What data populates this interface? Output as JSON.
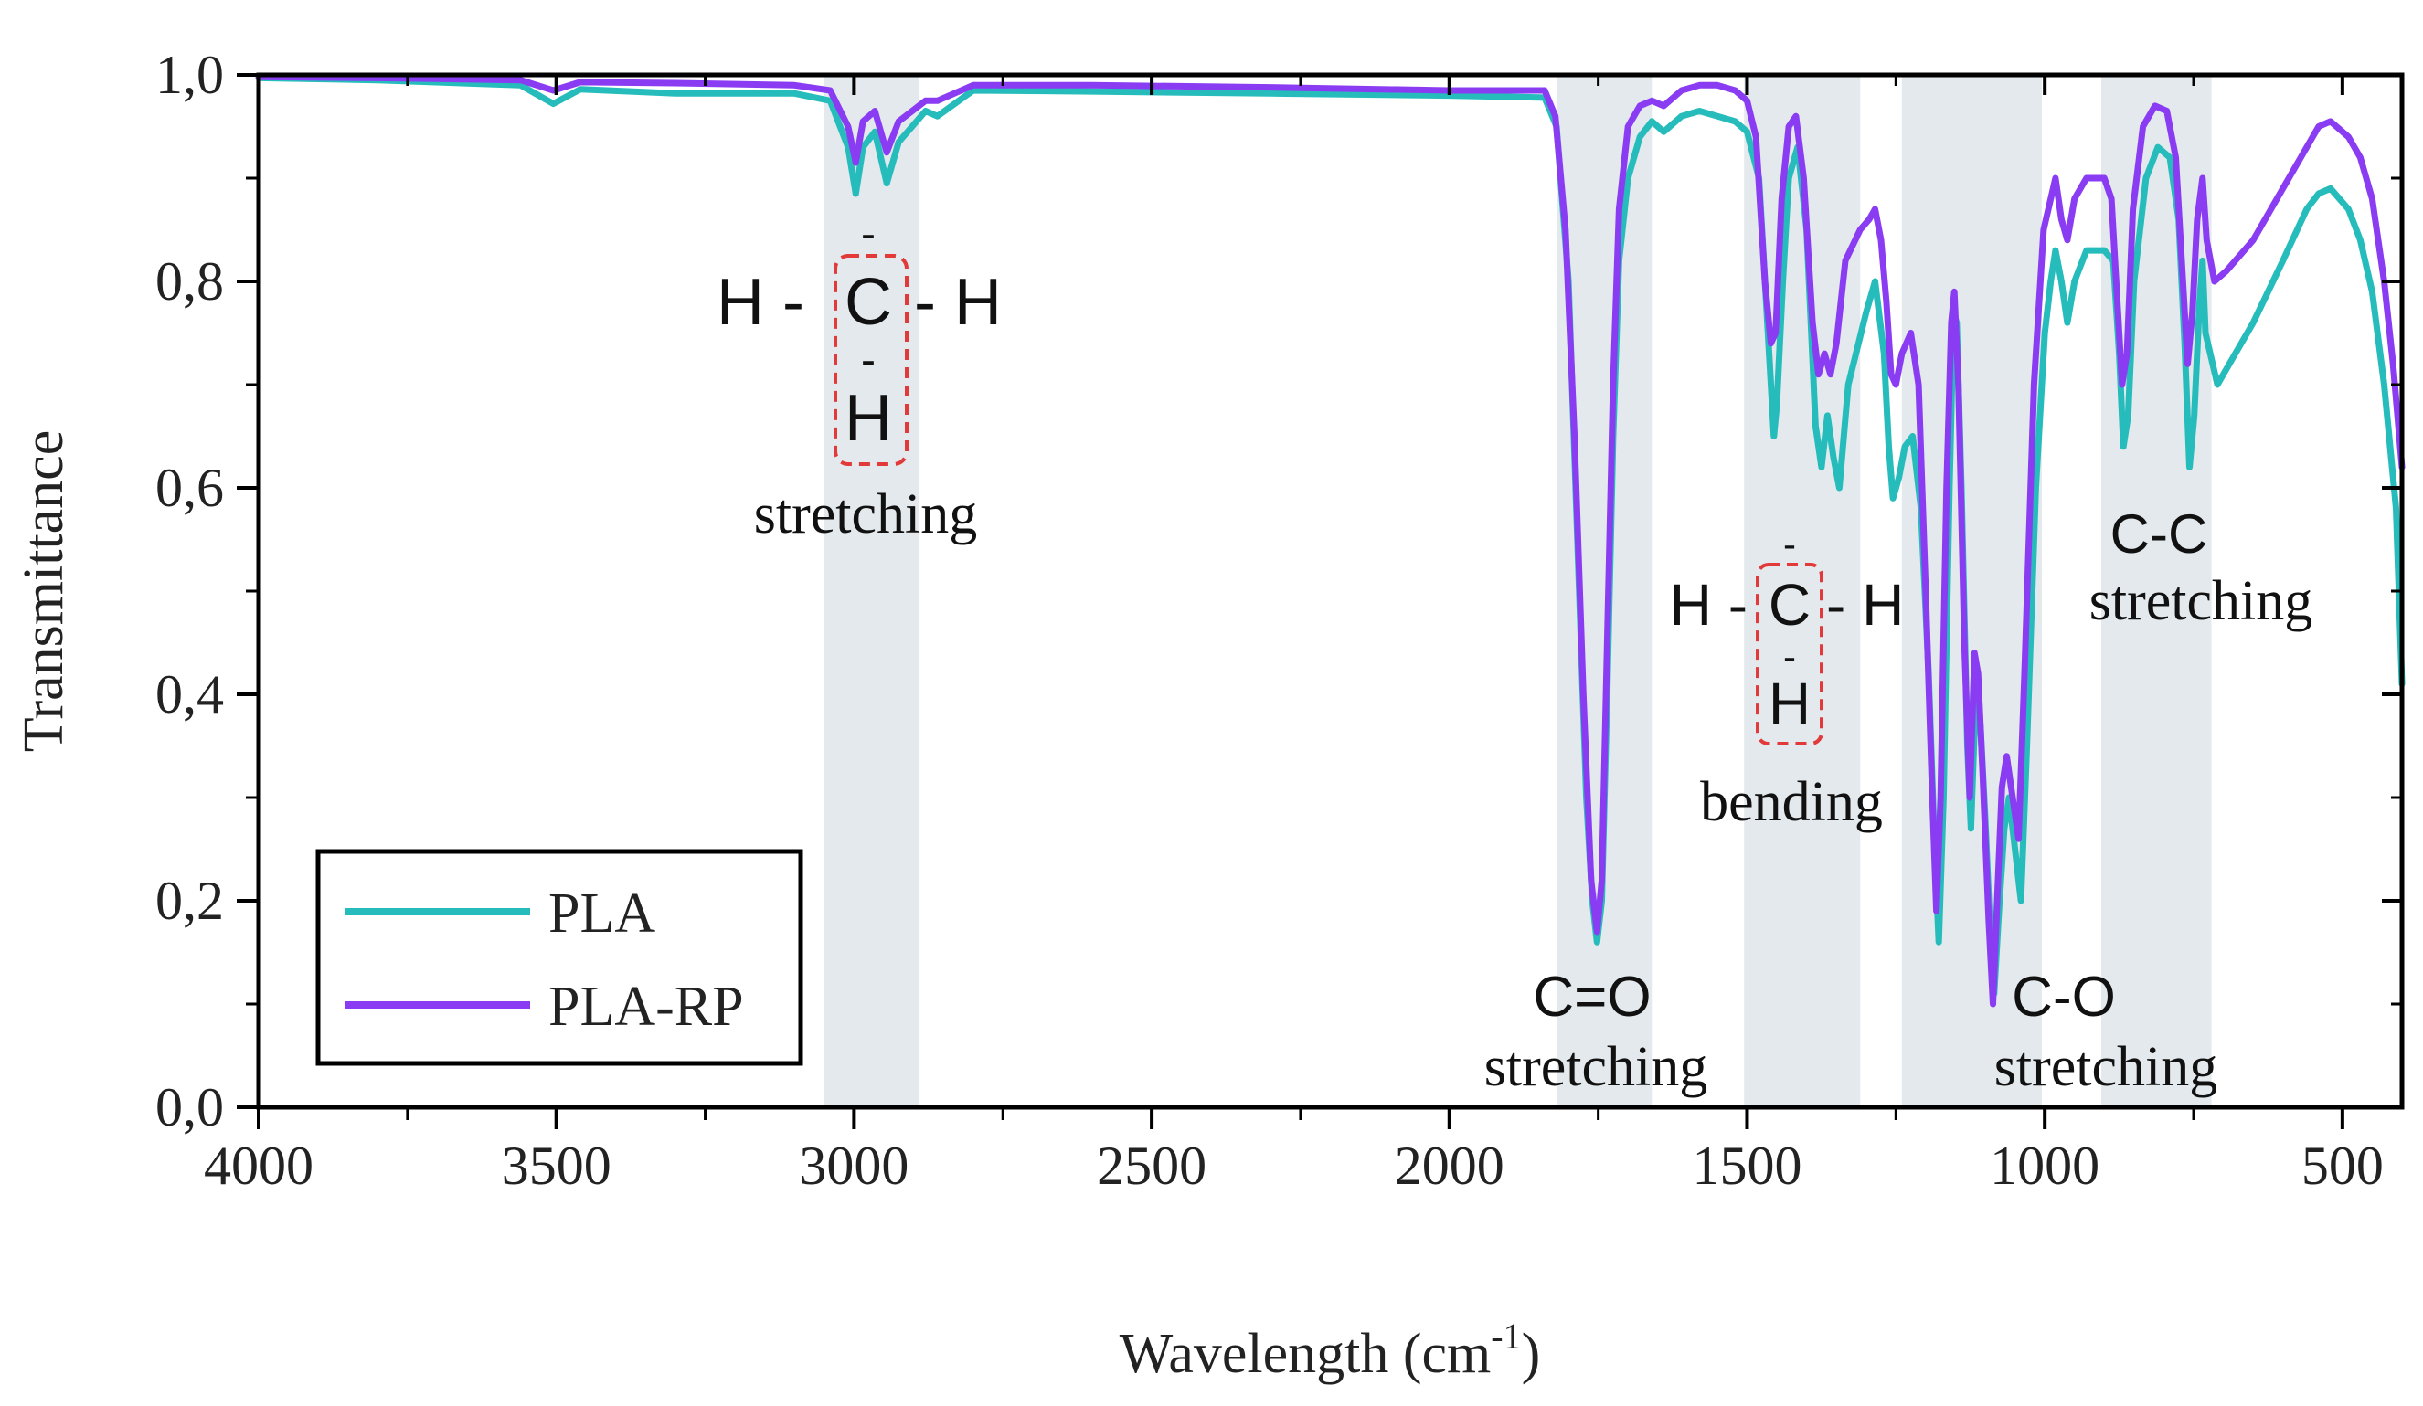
{
  "chart_data": {
    "type": "line",
    "xlabel": "Wavelength (cm",
    "xlabel_sup": "-1",
    "xlabel_close": ")",
    "ylabel": "Transmittance",
    "xlim": [
      4000,
      400
    ],
    "ylim": [
      0.0,
      1.0
    ],
    "x_ticks": [
      {
        "value": 4000,
        "label": "4000"
      },
      {
        "value": 3500,
        "label": "3500"
      },
      {
        "value": 3000,
        "label": "3000"
      },
      {
        "value": 2500,
        "label": "2500"
      },
      {
        "value": 2000,
        "label": "2000"
      },
      {
        "value": 1500,
        "label": "1500"
      },
      {
        "value": 1000,
        "label": "1000"
      },
      {
        "value": 500,
        "label": "500"
      }
    ],
    "y_ticks": [
      {
        "value": 0.0,
        "label": "0,0"
      },
      {
        "value": 0.2,
        "label": "0,2"
      },
      {
        "value": 0.4,
        "label": "0,4"
      },
      {
        "value": 0.6,
        "label": "0,6"
      },
      {
        "value": 0.8,
        "label": "0,8"
      },
      {
        "value": 1.0,
        "label": "1,0"
      }
    ],
    "bands": [
      {
        "from": 3050,
        "to": 2890
      },
      {
        "from": 1820,
        "to": 1660
      },
      {
        "from": 1505,
        "to": 1310
      },
      {
        "from": 1240,
        "to": 1005
      },
      {
        "from": 905,
        "to": 720
      }
    ],
    "series": [
      {
        "name": "PLA",
        "color": "#26bcbc",
        "points": [
          [
            4000,
            0.997
          ],
          [
            3800,
            0.995
          ],
          [
            3560,
            0.99
          ],
          [
            3505,
            0.972
          ],
          [
            3460,
            0.986
          ],
          [
            3300,
            0.982
          ],
          [
            3100,
            0.982
          ],
          [
            3040,
            0.975
          ],
          [
            3010,
            0.93
          ],
          [
            2997,
            0.885
          ],
          [
            2985,
            0.93
          ],
          [
            2965,
            0.945
          ],
          [
            2945,
            0.895
          ],
          [
            2925,
            0.935
          ],
          [
            2880,
            0.965
          ],
          [
            2860,
            0.96
          ],
          [
            2800,
            0.985
          ],
          [
            2600,
            0.984
          ],
          [
            2300,
            0.982
          ],
          [
            2000,
            0.98
          ],
          [
            1840,
            0.978
          ],
          [
            1820,
            0.95
          ],
          [
            1800,
            0.8
          ],
          [
            1785,
            0.55
          ],
          [
            1770,
            0.3
          ],
          [
            1760,
            0.2
          ],
          [
            1752,
            0.16
          ],
          [
            1744,
            0.2
          ],
          [
            1735,
            0.4
          ],
          [
            1725,
            0.65
          ],
          [
            1715,
            0.82
          ],
          [
            1700,
            0.9
          ],
          [
            1680,
            0.94
          ],
          [
            1660,
            0.955
          ],
          [
            1640,
            0.945
          ],
          [
            1610,
            0.96
          ],
          [
            1580,
            0.965
          ],
          [
            1550,
            0.96
          ],
          [
            1520,
            0.955
          ],
          [
            1500,
            0.945
          ],
          [
            1480,
            0.9
          ],
          [
            1465,
            0.75
          ],
          [
            1455,
            0.65
          ],
          [
            1450,
            0.68
          ],
          [
            1440,
            0.8
          ],
          [
            1430,
            0.9
          ],
          [
            1415,
            0.93
          ],
          [
            1400,
            0.85
          ],
          [
            1385,
            0.66
          ],
          [
            1375,
            0.62
          ],
          [
            1365,
            0.67
          ],
          [
            1355,
            0.63
          ],
          [
            1345,
            0.6
          ],
          [
            1330,
            0.7
          ],
          [
            1300,
            0.77
          ],
          [
            1285,
            0.8
          ],
          [
            1270,
            0.73
          ],
          [
            1262,
            0.64
          ],
          [
            1255,
            0.59
          ],
          [
            1245,
            0.61
          ],
          [
            1235,
            0.64
          ],
          [
            1222,
            0.65
          ],
          [
            1208,
            0.58
          ],
          [
            1195,
            0.42
          ],
          [
            1185,
            0.25
          ],
          [
            1178,
            0.16
          ],
          [
            1170,
            0.3
          ],
          [
            1160,
            0.6
          ],
          [
            1153,
            0.77
          ],
          [
            1148,
            0.76
          ],
          [
            1140,
            0.6
          ],
          [
            1130,
            0.35
          ],
          [
            1124,
            0.27
          ],
          [
            1116,
            0.4
          ],
          [
            1108,
            0.37
          ],
          [
            1100,
            0.28
          ],
          [
            1090,
            0.15
          ],
          [
            1085,
            0.11
          ],
          [
            1077,
            0.19
          ],
          [
            1068,
            0.27
          ],
          [
            1060,
            0.3
          ],
          [
            1050,
            0.25
          ],
          [
            1040,
            0.2
          ],
          [
            1030,
            0.35
          ],
          [
            1015,
            0.6
          ],
          [
            1000,
            0.75
          ],
          [
            990,
            0.8
          ],
          [
            982,
            0.83
          ],
          [
            972,
            0.8
          ],
          [
            962,
            0.76
          ],
          [
            950,
            0.8
          ],
          [
            930,
            0.83
          ],
          [
            900,
            0.83
          ],
          [
            885,
            0.82
          ],
          [
            875,
            0.73
          ],
          [
            868,
            0.64
          ],
          [
            860,
            0.67
          ],
          [
            850,
            0.8
          ],
          [
            830,
            0.9
          ],
          [
            810,
            0.93
          ],
          [
            790,
            0.92
          ],
          [
            775,
            0.86
          ],
          [
            765,
            0.74
          ],
          [
            757,
            0.62
          ],
          [
            749,
            0.67
          ],
          [
            740,
            0.78
          ],
          [
            735,
            0.82
          ],
          [
            730,
            0.75
          ],
          [
            710,
            0.7
          ],
          [
            690,
            0.72
          ],
          [
            650,
            0.76
          ],
          [
            600,
            0.82
          ],
          [
            560,
            0.87
          ],
          [
            540,
            0.885
          ],
          [
            520,
            0.89
          ],
          [
            490,
            0.87
          ],
          [
            470,
            0.84
          ],
          [
            450,
            0.79
          ],
          [
            430,
            0.7
          ],
          [
            410,
            0.58
          ],
          [
            400,
            0.41
          ]
        ]
      },
      {
        "name": "PLA-RP",
        "color": "#8a3cf2",
        "points": [
          [
            4000,
            0.998
          ],
          [
            3800,
            0.997
          ],
          [
            3560,
            0.995
          ],
          [
            3505,
            0.985
          ],
          [
            3460,
            0.993
          ],
          [
            3300,
            0.992
          ],
          [
            3100,
            0.99
          ],
          [
            3040,
            0.985
          ],
          [
            3010,
            0.95
          ],
          [
            2997,
            0.915
          ],
          [
            2985,
            0.955
          ],
          [
            2965,
            0.965
          ],
          [
            2945,
            0.925
          ],
          [
            2925,
            0.955
          ],
          [
            2880,
            0.975
          ],
          [
            2860,
            0.975
          ],
          [
            2800,
            0.99
          ],
          [
            2600,
            0.99
          ],
          [
            2300,
            0.988
          ],
          [
            2000,
            0.985
          ],
          [
            1840,
            0.985
          ],
          [
            1822,
            0.96
          ],
          [
            1805,
            0.85
          ],
          [
            1790,
            0.65
          ],
          [
            1775,
            0.4
          ],
          [
            1762,
            0.22
          ],
          [
            1752,
            0.17
          ],
          [
            1744,
            0.22
          ],
          [
            1735,
            0.45
          ],
          [
            1725,
            0.7
          ],
          [
            1715,
            0.87
          ],
          [
            1700,
            0.95
          ],
          [
            1680,
            0.97
          ],
          [
            1660,
            0.975
          ],
          [
            1640,
            0.97
          ],
          [
            1610,
            0.985
          ],
          [
            1580,
            0.99
          ],
          [
            1550,
            0.99
          ],
          [
            1520,
            0.985
          ],
          [
            1500,
            0.975
          ],
          [
            1485,
            0.94
          ],
          [
            1470,
            0.8
          ],
          [
            1460,
            0.74
          ],
          [
            1452,
            0.75
          ],
          [
            1442,
            0.88
          ],
          [
            1430,
            0.95
          ],
          [
            1418,
            0.96
          ],
          [
            1405,
            0.9
          ],
          [
            1390,
            0.76
          ],
          [
            1380,
            0.71
          ],
          [
            1370,
            0.73
          ],
          [
            1360,
            0.71
          ],
          [
            1350,
            0.74
          ],
          [
            1335,
            0.82
          ],
          [
            1310,
            0.85
          ],
          [
            1295,
            0.86
          ],
          [
            1285,
            0.87
          ],
          [
            1275,
            0.84
          ],
          [
            1266,
            0.78
          ],
          [
            1258,
            0.71
          ],
          [
            1250,
            0.7
          ],
          [
            1240,
            0.73
          ],
          [
            1225,
            0.75
          ],
          [
            1212,
            0.7
          ],
          [
            1200,
            0.5
          ],
          [
            1190,
            0.32
          ],
          [
            1182,
            0.19
          ],
          [
            1175,
            0.3
          ],
          [
            1165,
            0.6
          ],
          [
            1157,
            0.76
          ],
          [
            1152,
            0.79
          ],
          [
            1145,
            0.7
          ],
          [
            1135,
            0.45
          ],
          [
            1126,
            0.3
          ],
          [
            1118,
            0.44
          ],
          [
            1112,
            0.42
          ],
          [
            1104,
            0.32
          ],
          [
            1094,
            0.18
          ],
          [
            1087,
            0.1
          ],
          [
            1080,
            0.2
          ],
          [
            1072,
            0.31
          ],
          [
            1064,
            0.34
          ],
          [
            1054,
            0.3
          ],
          [
            1044,
            0.26
          ],
          [
            1034,
            0.42
          ],
          [
            1018,
            0.7
          ],
          [
            1002,
            0.85
          ],
          [
            990,
            0.88
          ],
          [
            982,
            0.9
          ],
          [
            972,
            0.86
          ],
          [
            962,
            0.84
          ],
          [
            950,
            0.88
          ],
          [
            930,
            0.9
          ],
          [
            900,
            0.9
          ],
          [
            888,
            0.88
          ],
          [
            878,
            0.78
          ],
          [
            870,
            0.7
          ],
          [
            862,
            0.73
          ],
          [
            852,
            0.87
          ],
          [
            835,
            0.95
          ],
          [
            815,
            0.97
          ],
          [
            795,
            0.965
          ],
          [
            780,
            0.92
          ],
          [
            770,
            0.82
          ],
          [
            760,
            0.72
          ],
          [
            752,
            0.77
          ],
          [
            744,
            0.86
          ],
          [
            735,
            0.9
          ],
          [
            728,
            0.84
          ],
          [
            715,
            0.8
          ],
          [
            695,
            0.81
          ],
          [
            650,
            0.84
          ],
          [
            600,
            0.89
          ],
          [
            560,
            0.93
          ],
          [
            540,
            0.95
          ],
          [
            520,
            0.955
          ],
          [
            490,
            0.94
          ],
          [
            470,
            0.92
          ],
          [
            450,
            0.88
          ],
          [
            430,
            0.8
          ],
          [
            415,
            0.72
          ],
          [
            400,
            0.62
          ]
        ]
      }
    ],
    "legend": {
      "placement": "bottom-left",
      "entries": [
        "PLA",
        "PLA-RP"
      ]
    },
    "annotations": [
      {
        "id": "ch-stretch",
        "h_left": "H -",
        "carbon": "C",
        "h_right": "- H",
        "top_bond": "-",
        "mid_bond": "-",
        "h_bottom": "H",
        "caption": "stretching"
      },
      {
        "id": "ch-bend",
        "h_left": "H -",
        "carbon": "C",
        "h_right": "- H",
        "top_bond": "-",
        "mid_bond": "-",
        "h_bottom": "H",
        "caption": "bending"
      },
      {
        "id": "co-double",
        "label": "C=O",
        "caption": "stretching"
      },
      {
        "id": "co-single",
        "label": "C-O",
        "caption": "stretching"
      },
      {
        "id": "cc",
        "label": "C-C",
        "caption": "stretching"
      }
    ]
  }
}
